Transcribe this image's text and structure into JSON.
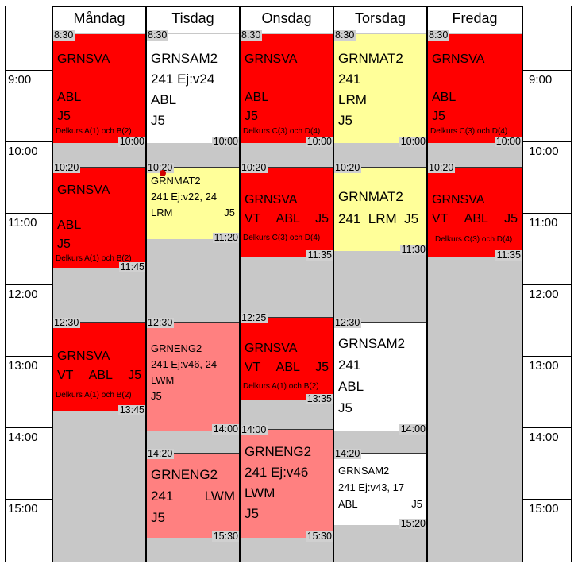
{
  "days": [
    "Måndag",
    "Tisdag",
    "Onsdag",
    "Torsdag",
    "Fredag"
  ],
  "hours": [
    "9:00",
    "10:00",
    "11:00",
    "12:00",
    "13:00",
    "14:00",
    "15:00"
  ],
  "colors": {
    "red": "#ff0000",
    "yellow": "#ffff99",
    "white": "#ffffff",
    "pink": "#ff8080",
    "gray": "#c8c8c8"
  },
  "lessons": {
    "mon1": {
      "start": "8:30",
      "end": "10:00",
      "l1": "GRNSVA",
      "l2": "ABL",
      "l3": "J5",
      "note": "Delkurs A(1) och B(2)"
    },
    "mon2": {
      "start": "10:20",
      "end": "11:45",
      "l1": "GRNSVA",
      "l2": "ABL",
      "l3": "J5",
      "note": "Delkurs A(1) och B(2)"
    },
    "mon3": {
      "start": "12:30",
      "end": "13:45",
      "l1": "GRNSVA",
      "l2a": "VT",
      "l2b": "ABL",
      "l2c": "J5",
      "note": "Delkurs A(1) och B(2)"
    },
    "tue1": {
      "start": "8:30",
      "end": "10:00",
      "l1": "GRNSAM2",
      "l2": "241 Ej:v24",
      "l3": "ABL",
      "l4": "J5"
    },
    "tue2": {
      "start": "10:20",
      "end": "11:20",
      "l1": "GRNMAT2",
      "l2": "241 Ej:v22, 24",
      "l3a": "LRM",
      "l3b": "J5"
    },
    "tue3": {
      "start": "12:30",
      "end": "14:00",
      "l1": "GRNENG2",
      "l2": "241 Ej:v46, 24",
      "l3": "LWM",
      "l4": "J5"
    },
    "tue4": {
      "start": "14:20",
      "end": "15:30",
      "l1": "GRNENG2",
      "l2a": "241",
      "l2b": "LWM",
      "l3": "J5"
    },
    "wed1": {
      "start": "8:30",
      "end": "10:00",
      "l1": "GRNSVA",
      "l2": "ABL",
      "l3": "J5",
      "note": "Delkurs C(3) och D(4)"
    },
    "wed2": {
      "start": "10:20",
      "end": "11:35",
      "l1": "GRNSVA",
      "l2a": "VT",
      "l2b": "ABL",
      "l2c": "J5",
      "note": "Delkurs C(3) och D(4)"
    },
    "wed3": {
      "start": "12:25",
      "end": "13:35",
      "l1": "GRNSVA",
      "l2a": "VT",
      "l2b": "ABL",
      "l2c": "J5",
      "note": "Delkurs A(1) och B(2)"
    },
    "wed4": {
      "start": "14:00",
      "end": "15:30",
      "l1": "GRNENG2",
      "l2": "241 Ej:v46",
      "l3": "LWM",
      "l4": "J5"
    },
    "thu1": {
      "start": "8:30",
      "end": "10:00",
      "l1": "GRNMAT2",
      "l2": "241",
      "l3": "LRM",
      "l4": "J5"
    },
    "thu2": {
      "start": "10:20",
      "end": "11:30",
      "l1": "GRNMAT2",
      "l2": "241  LRM  J5"
    },
    "thu3": {
      "start": "12:30",
      "end": "14:00",
      "l1": "GRNSAM2",
      "l2": "241",
      "l3": "ABL",
      "l4": "J5"
    },
    "thu4": {
      "start": "14:20",
      "end": "15:20",
      "l1": "GRNSAM2",
      "l2": "241 Ej:v43, 17",
      "l3a": "ABL",
      "l3b": "J5"
    },
    "fri1": {
      "start": "8:30",
      "end": "10:00",
      "l1": "GRNSVA",
      "l2": "ABL",
      "l3": "J5",
      "note": "Delkurs C(3) och D(4)"
    },
    "fri2": {
      "start": "10:20",
      "end": "11:35",
      "l1": "GRNSVA",
      "l2a": "VT",
      "l2b": "ABL",
      "l2c": "J5",
      "note": "Delkurs C(3) och D(4)"
    }
  }
}
